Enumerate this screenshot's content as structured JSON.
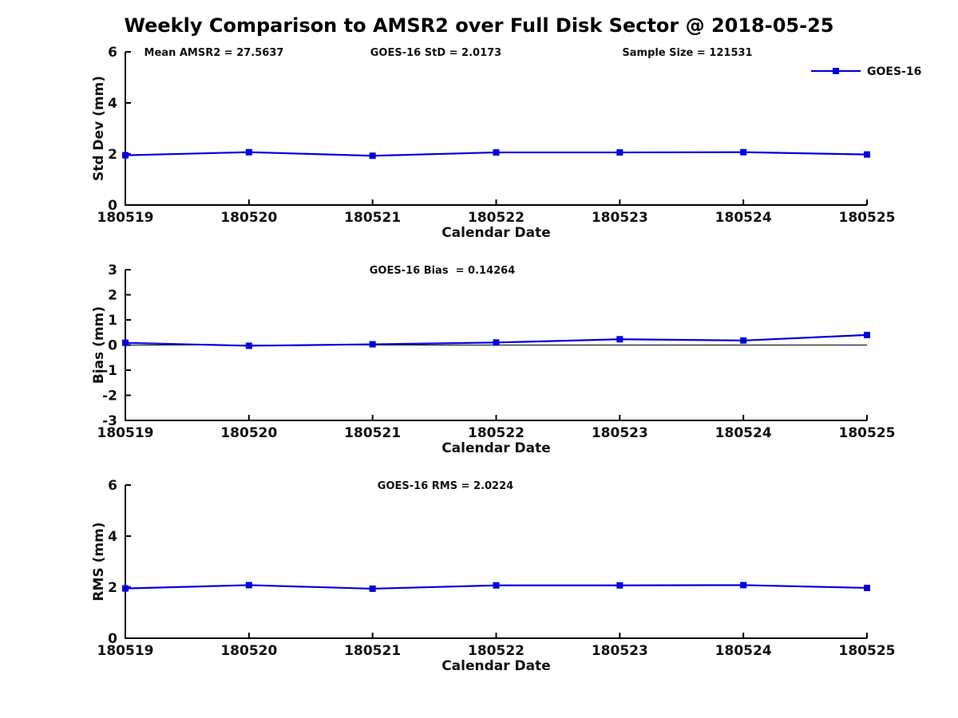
{
  "title": "Weekly Comparison to AMSR2 over Full Disk Sector @ 2018-05-25",
  "colors": {
    "series_line": "#0000E0",
    "axis": "#000000",
    "text": "#111111",
    "zero_line": "#000000"
  },
  "legend": {
    "label": "GOES-16"
  },
  "chart_data": [
    {
      "id": "std-dev-plot",
      "type": "line",
      "title": "",
      "ylabel": "Std Dev (mm)",
      "xlabel": "Calendar Date",
      "categories": [
        "180519",
        "180520",
        "180521",
        "180522",
        "180523",
        "180524",
        "180525"
      ],
      "series": [
        {
          "name": "GOES-16",
          "values": [
            1.95,
            2.07,
            1.93,
            2.06,
            2.06,
            2.07,
            1.98
          ]
        }
      ],
      "ylim": [
        0,
        6
      ],
      "yticks": [
        0,
        2,
        4,
        6
      ],
      "grid": false,
      "zero_line": false,
      "legend": {
        "visible": true,
        "label": "GOES-16",
        "position": "top-right"
      },
      "annotations": [
        "Mean AMSR2 = 27.5637",
        "GOES-16 StD = 2.0173",
        "Sample Size = 121531"
      ]
    },
    {
      "id": "bias-plot",
      "type": "line",
      "title": "",
      "ylabel": "Bias (mm)",
      "xlabel": "Calendar Date",
      "categories": [
        "180519",
        "180520",
        "180521",
        "180522",
        "180523",
        "180524",
        "180525"
      ],
      "series": [
        {
          "name": "GOES-16",
          "values": [
            0.09,
            -0.03,
            0.03,
            0.1,
            0.23,
            0.18,
            0.4
          ]
        }
      ],
      "ylim": [
        -3,
        3
      ],
      "yticks": [
        -3,
        -2,
        -1,
        0,
        1,
        2,
        3
      ],
      "grid": false,
      "zero_line": true,
      "legend": {
        "visible": false,
        "label": "GOES-16",
        "position": "none"
      },
      "annotations": [
        "GOES-16 Bias  = 0.14264"
      ]
    },
    {
      "id": "rms-plot",
      "type": "line",
      "title": "",
      "ylabel": "RMS (mm)",
      "xlabel": "Calendar Date",
      "categories": [
        "180519",
        "180520",
        "180521",
        "180522",
        "180523",
        "180524",
        "180525"
      ],
      "series": [
        {
          "name": "GOES-16",
          "values": [
            1.95,
            2.08,
            1.94,
            2.07,
            2.07,
            2.08,
            1.97
          ]
        }
      ],
      "ylim": [
        0,
        6
      ],
      "yticks": [
        0,
        2,
        4,
        6
      ],
      "grid": false,
      "zero_line": false,
      "legend": {
        "visible": false,
        "label": "GOES-16",
        "position": "none"
      },
      "annotations": [
        "GOES-16 RMS = 2.0224"
      ]
    }
  ]
}
